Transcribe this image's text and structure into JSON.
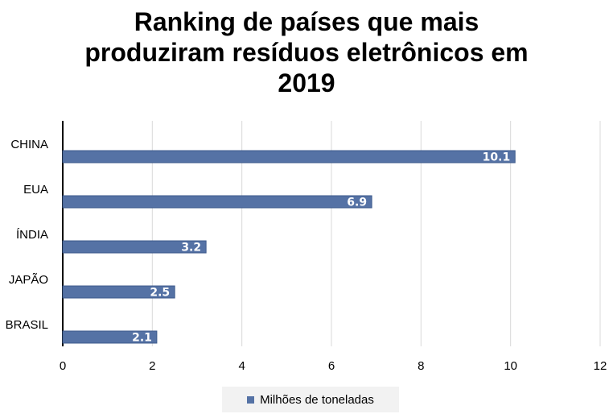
{
  "chart_data": {
    "type": "bar",
    "orientation": "horizontal",
    "title_lines": [
      "Ranking de países que mais",
      "produziram resíduos eletrônicos em",
      "2019"
    ],
    "categories": [
      "CHINA",
      "EUA",
      "ÍNDIA",
      "JAPÃO",
      "BRASIL"
    ],
    "series": [
      {
        "name": "Milhões de toneladas",
        "values": [
          10.1,
          6.9,
          3.2,
          2.5,
          2.1
        ],
        "color": "#5572a5"
      }
    ],
    "data_labels": [
      "10.1",
      "6.9",
      "3.2",
      "2.5",
      "2.1"
    ],
    "xlim": [
      0,
      12
    ],
    "xticks": [
      "0",
      "2",
      "4",
      "6",
      "8",
      "10",
      "12"
    ],
    "grid": "vertical",
    "legend_position": "bottom"
  }
}
